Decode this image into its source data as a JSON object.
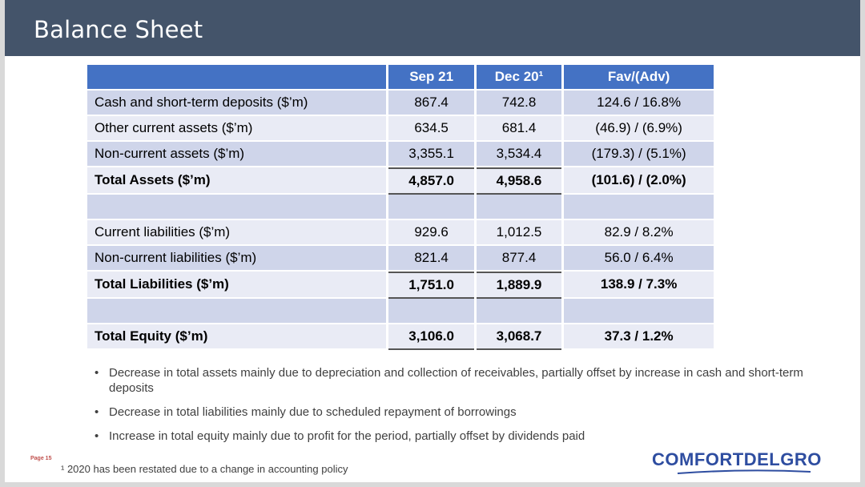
{
  "title": "Balance Sheet",
  "table": {
    "headers": [
      "",
      "Sep 21",
      "Dec 20¹",
      "Fav/(Adv)"
    ],
    "rows": [
      {
        "label": "Cash and short-term deposits ($’m)",
        "sep21": "867.4",
        "dec20": "742.8",
        "fav": "124.6 / 16.8%"
      },
      {
        "label": "Other current assets ($’m)",
        "sep21": "634.5",
        "dec20": "681.4",
        "fav": "(46.9) / (6.9%)"
      },
      {
        "label": "Non-current assets ($’m)",
        "sep21": "3,355.1",
        "dec20": "3,534.4",
        "fav": "(179.3) / (5.1%)"
      },
      {
        "label": "Total Assets ($’m)",
        "sep21": "4,857.0",
        "dec20": "4,958.6",
        "fav": "(101.6) / (2.0%)"
      },
      {
        "label": "",
        "sep21": "",
        "dec20": "",
        "fav": ""
      },
      {
        "label": "Current liabilities ($’m)",
        "sep21": "929.6",
        "dec20": "1,012.5",
        "fav": "82.9 / 8.2%"
      },
      {
        "label": "Non-current liabilities ($’m)",
        "sep21": "821.4",
        "dec20": "877.4",
        "fav": "56.0 / 6.4%"
      },
      {
        "label": "Total Liabilities ($’m)",
        "sep21": "1,751.0",
        "dec20": "1,889.9",
        "fav": "138.9 / 7.3%"
      },
      {
        "label": "",
        "sep21": "",
        "dec20": "",
        "fav": ""
      },
      {
        "label": "Total Equity ($’m)",
        "sep21": "3,106.0",
        "dec20": "3,068.7",
        "fav": "37.3 / 1.2%"
      }
    ]
  },
  "bullets": [
    "Decrease in total assets mainly due to depreciation and collection of receivables, partially offset by increase in cash and short-term deposits",
    "Decrease in total liabilities mainly due to scheduled repayment of borrowings",
    "Increase in total equity mainly due to profit for the period, partially offset by dividends paid"
  ],
  "page_label": "Page 15",
  "footnote": "¹ 2020 has been restated due to a change in accounting policy",
  "logo_text": "COMFORTDELGRO",
  "colors": {
    "title_bar": "#44546a",
    "header": "#4472c4",
    "row_dark": "#cfd5ea",
    "row_light": "#e9ebf5",
    "logo": "#2e4da0"
  }
}
